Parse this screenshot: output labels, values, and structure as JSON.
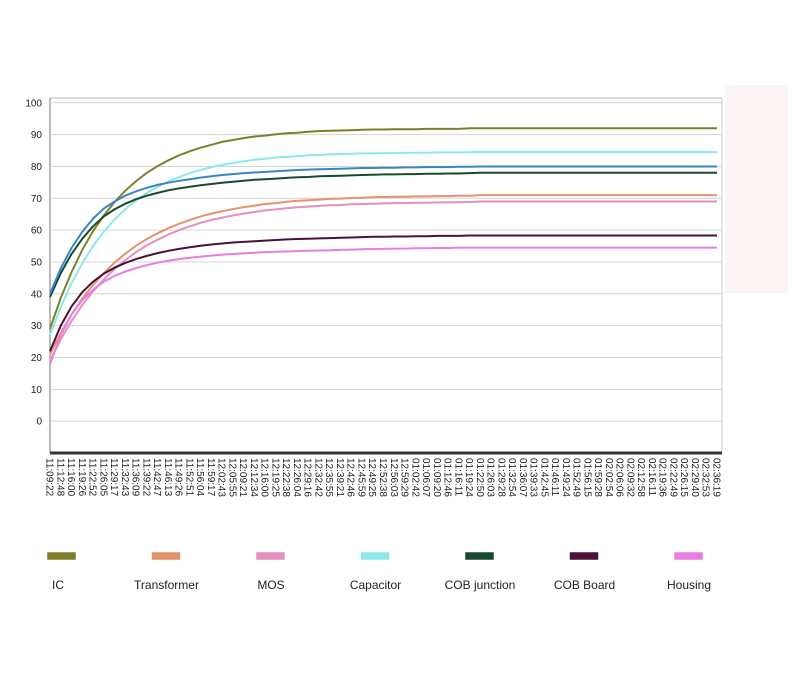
{
  "chart_data": {
    "type": "line",
    "categories": [
      "11:09:22",
      "11:12:48",
      "11:16:00",
      "11:19:26",
      "11:22:52",
      "11:26:05",
      "11:29:17",
      "11:32:43",
      "11:36:09",
      "11:39:22",
      "11:42:47",
      "11:46:13",
      "11:49:26",
      "11:52:51",
      "11:56:04",
      "11:59:17",
      "12:02:43",
      "12:05:55",
      "12:09:21",
      "12:12:34",
      "12:16:00",
      "12:19:25",
      "12:22:38",
      "12:26:04",
      "12:29:16",
      "12:32:42",
      "12:35:55",
      "12:39:21",
      "12:42:46",
      "12:45:59",
      "12:49:25",
      "12:52:38",
      "12:56:03",
      "12:59:29",
      "01:02:42",
      "01:06:07",
      "01:09:20",
      "01:12:46",
      "01:16:11",
      "01:19:24",
      "01:22:50",
      "01:26:03",
      "01:29:28",
      "01:32:54",
      "01:36:07",
      "01:39:33",
      "01:42:45",
      "01:46:11",
      "01:49:24",
      "01:52:49",
      "01:56:15",
      "01:59:28",
      "02:02:54",
      "02:06:06",
      "02:09:32",
      "02:12:58",
      "02:16:11",
      "02:19:36",
      "02:22:49",
      "02:26:15",
      "02:29:40",
      "02:32:53",
      "02:36:19"
    ],
    "series": [
      {
        "name": "IC",
        "color": "#7f7f2a",
        "values": [
          29,
          38.7,
          46.8,
          53.8,
          59.7,
          64.6,
          68.8,
          72.4,
          75.4,
          78,
          80.1,
          81.9,
          83.5,
          84.8,
          85.9,
          86.8,
          87.7,
          88.3,
          88.9,
          89.4,
          89.7,
          90.1,
          90.4,
          90.6,
          90.9,
          91.1,
          91.2,
          91.3,
          91.4,
          91.5,
          91.6,
          91.6,
          91.7,
          91.7,
          91.7,
          91.8,
          91.8,
          91.8,
          91.8,
          92,
          92,
          92,
          92,
          92,
          92,
          92,
          92,
          92,
          92,
          92,
          92,
          92,
          92,
          92,
          92,
          92,
          92,
          92,
          92,
          92,
          92,
          92,
          92
        ]
      },
      {
        "name": "Transformer",
        "color": "#e2936a",
        "values": [
          21,
          27.7,
          33.5,
          38.5,
          42.8,
          46.5,
          49.8,
          52.6,
          55.1,
          57.2,
          59,
          60.6,
          62,
          63.2,
          64.3,
          65.2,
          65.9,
          66.6,
          67.2,
          67.7,
          68.2,
          68.5,
          68.9,
          69.2,
          69.4,
          69.6,
          69.8,
          69.9,
          70.1,
          70.2,
          70.3,
          70.4,
          70.5,
          70.5,
          70.6,
          70.6,
          70.7,
          70.7,
          70.8,
          70.8,
          71,
          71,
          71,
          71,
          71,
          71,
          71,
          71,
          71,
          71,
          71,
          71,
          71,
          71,
          71,
          71,
          71,
          71,
          71,
          71,
          71,
          71,
          71
        ]
      },
      {
        "name": "MOS",
        "color": "#e48fbf",
        "values": [
          19,
          25.7,
          31.5,
          36.5,
          40.8,
          44.5,
          47.8,
          50.6,
          53.1,
          55.2,
          57,
          58.6,
          60,
          61.2,
          62.3,
          63.2,
          63.9,
          64.6,
          65.2,
          65.7,
          66.2,
          66.5,
          66.9,
          67.2,
          67.4,
          67.6,
          67.8,
          67.9,
          68.1,
          68.2,
          68.3,
          68.4,
          68.5,
          68.5,
          68.6,
          68.6,
          68.7,
          68.7,
          68.8,
          68.8,
          69,
          69,
          69,
          69,
          69,
          69,
          69,
          69,
          69,
          69,
          69,
          69,
          69,
          69,
          69,
          69,
          69,
          69,
          69,
          69,
          69,
          69,
          69
        ]
      },
      {
        "name": "Capacitor",
        "color": "#8ee8ea",
        "values": [
          27,
          35.9,
          43.3,
          49.6,
          55,
          59.5,
          63.3,
          66.6,
          69.3,
          71.7,
          73.6,
          75.3,
          76.7,
          77.9,
          78.9,
          79.8,
          80.5,
          81.1,
          81.6,
          82.1,
          82.4,
          82.8,
          83,
          83.2,
          83.5,
          83.6,
          83.8,
          83.9,
          84,
          84.1,
          84.1,
          84.2,
          84.2,
          84.3,
          84.3,
          84.3,
          84.4,
          84.4,
          84.4,
          84.5,
          84.5,
          84.5,
          84.5,
          84.5,
          84.5,
          84.5,
          84.5,
          84.5,
          84.5,
          84.5,
          84.5,
          84.5,
          84.5,
          84.5,
          84.5,
          84.5,
          84.5,
          84.5,
          84.5,
          84.5,
          84.5,
          84.5,
          84.5
        ]
      },
      {
        "name": "COB  junction",
        "color": "#184a30",
        "values": [
          39,
          46.5,
          52.5,
          57.3,
          61.2,
          64.3,
          66.5,
          68.3,
          69.7,
          70.8,
          71.7,
          72.5,
          73.1,
          73.6,
          74.1,
          74.5,
          74.9,
          75.2,
          75.5,
          75.8,
          76,
          76.2,
          76.4,
          76.6,
          76.7,
          76.9,
          77,
          77.1,
          77.2,
          77.3,
          77.4,
          77.5,
          77.5,
          77.6,
          77.6,
          77.7,
          77.7,
          77.8,
          77.8,
          77.9,
          78,
          78,
          78,
          78,
          78,
          78,
          78,
          78,
          78,
          78,
          78,
          78,
          78,
          78,
          78,
          78,
          78,
          78,
          78,
          78,
          78,
          78,
          78
        ]
      },
      {
        "name": "COB Board",
        "color": "#4a1238",
        "values": [
          22,
          30,
          36,
          40.5,
          43.8,
          46.3,
          48.2,
          49.7,
          50.9,
          51.9,
          52.8,
          53.5,
          54.1,
          54.6,
          55.1,
          55.5,
          55.8,
          56.1,
          56.3,
          56.5,
          56.7,
          56.9,
          57.1,
          57.2,
          57.3,
          57.4,
          57.5,
          57.6,
          57.7,
          57.8,
          57.9,
          57.9,
          58,
          58,
          58.1,
          58.1,
          58.2,
          58.2,
          58.2,
          58.3,
          58.3,
          58.3,
          58.3,
          58.3,
          58.3,
          58.3,
          58.3,
          58.3,
          58.3,
          58.3,
          58.3,
          58.3,
          58.3,
          58.3,
          58.3,
          58.3,
          58.3,
          58.3,
          58.3,
          58.3,
          58.3,
          58.3,
          58.3
        ]
      },
      {
        "name": "Housing",
        "color": "#e87ee0",
        "values": [
          18,
          27,
          33.5,
          38,
          41.3,
          43.8,
          45.6,
          47,
          48.1,
          49,
          49.8,
          50.4,
          50.9,
          51.3,
          51.7,
          52,
          52.3,
          52.5,
          52.7,
          52.9,
          53.1,
          53.2,
          53.3,
          53.4,
          53.5,
          53.6,
          53.7,
          53.8,
          53.9,
          54,
          54.1,
          54.1,
          54.2,
          54.2,
          54.3,
          54.3,
          54.4,
          54.4,
          54.5,
          54.5,
          54.5,
          54.5,
          54.5,
          54.5,
          54.5,
          54.5,
          54.5,
          54.5,
          54.5,
          54.5,
          54.5,
          54.5,
          54.5,
          54.5,
          54.5,
          54.5,
          54.5,
          54.5,
          54.5,
          54.5,
          54.5,
          54.5,
          54.5
        ]
      },
      {
        "color": "#3a86c4",
        "values": [
          40,
          48,
          54.4,
          59.5,
          63.6,
          66.8,
          69,
          70.8,
          72.2,
          73.3,
          74.2,
          74.9,
          75.5,
          76,
          76.5,
          76.9,
          77.3,
          77.6,
          77.9,
          78.1,
          78.3,
          78.5,
          78.7,
          78.9,
          79,
          79.1,
          79.2,
          79.3,
          79.4,
          79.5,
          79.5,
          79.6,
          79.6,
          79.7,
          79.7,
          79.8,
          79.8,
          79.8,
          79.9,
          79.9,
          80,
          80,
          80,
          80,
          80,
          80,
          80,
          80,
          80,
          80,
          80,
          80,
          80,
          80,
          80,
          80,
          80,
          80,
          80,
          80,
          80,
          80,
          80
        ]
      }
    ],
    "ylim": [
      -10,
      101.5
    ],
    "yticks": [
      0,
      10,
      20,
      30,
      40,
      50,
      60,
      70,
      80,
      90,
      100
    ],
    "grid": true
  }
}
